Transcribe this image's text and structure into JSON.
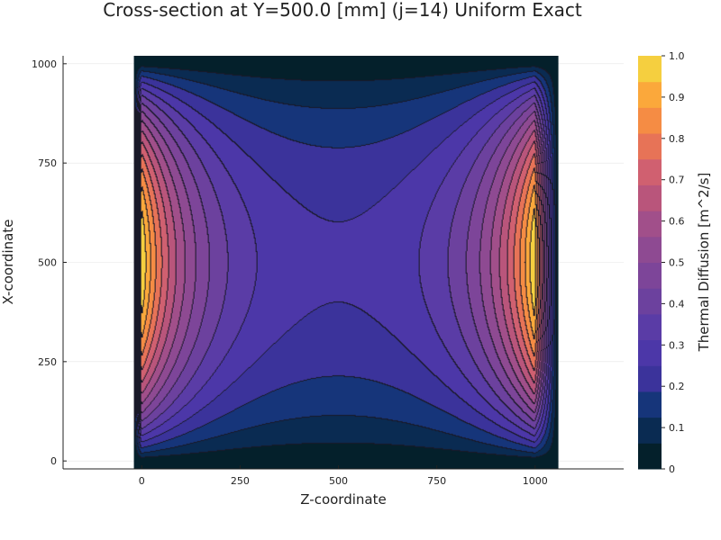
{
  "chart_data": {
    "type": "heatmap",
    "subtype": "filled-contour",
    "title": "Cross-section at Y=500.0 [mm] (j=14) Uniform Exact",
    "xlabel": "Z-coordinate",
    "ylabel": "X-coordinate",
    "colorbar_label": "Thermal Diffusion [m^2/s]",
    "xlim": [
      -200,
      1225
    ],
    "ylim": [
      -20,
      1020
    ],
    "data_extent": {
      "x": [
        -20,
        1060
      ],
      "y": [
        -20,
        1020
      ]
    },
    "x_ticks": [
      0,
      250,
      500,
      750,
      1000
    ],
    "x_tick_labels": [
      "0",
      "250",
      "500",
      "750",
      "1000"
    ],
    "y_ticks": [
      0,
      250,
      500,
      750,
      1000
    ],
    "y_tick_labels": [
      "0",
      "250",
      "500",
      "750",
      "1000"
    ],
    "colorbar_range": [
      0,
      1
    ],
    "colorbar_ticks": [
      0,
      0.1,
      0.2,
      0.3,
      0.4,
      0.5,
      0.6,
      0.7,
      0.8,
      0.9,
      1.0
    ],
    "colorbar_tick_labels": [
      "0",
      "0.1",
      "0.2",
      "0.3",
      "0.4",
      "0.5",
      "0.6",
      "0.7",
      "0.8",
      "0.9",
      "1.0"
    ],
    "levels": [
      0,
      0.0625,
      0.125,
      0.1875,
      0.25,
      0.3125,
      0.375,
      0.4375,
      0.5,
      0.5625,
      0.625,
      0.6875,
      0.75,
      0.8125,
      0.875,
      0.9375,
      1.0
    ],
    "colormap": [
      "#04202b",
      "#0a2b52",
      "#16357a",
      "#3b339b",
      "#4c37a8",
      "#5a3ca6",
      "#6c419e",
      "#7d4599",
      "#8e4a92",
      "#a14f8a",
      "#b9557b",
      "#d06070",
      "#e77357",
      "#f58c44",
      "#fba83b",
      "#f5cf3f",
      "#e8f95a"
    ],
    "field_description_values": {
      "min": 0,
      "max": 1.0,
      "peak_locations": [
        [
          0,
          500
        ],
        [
          1000,
          500
        ]
      ],
      "saddle_location": [
        500,
        500
      ],
      "saddle_value": 0.22
    },
    "grid": true,
    "legend": "colorbar-right"
  }
}
